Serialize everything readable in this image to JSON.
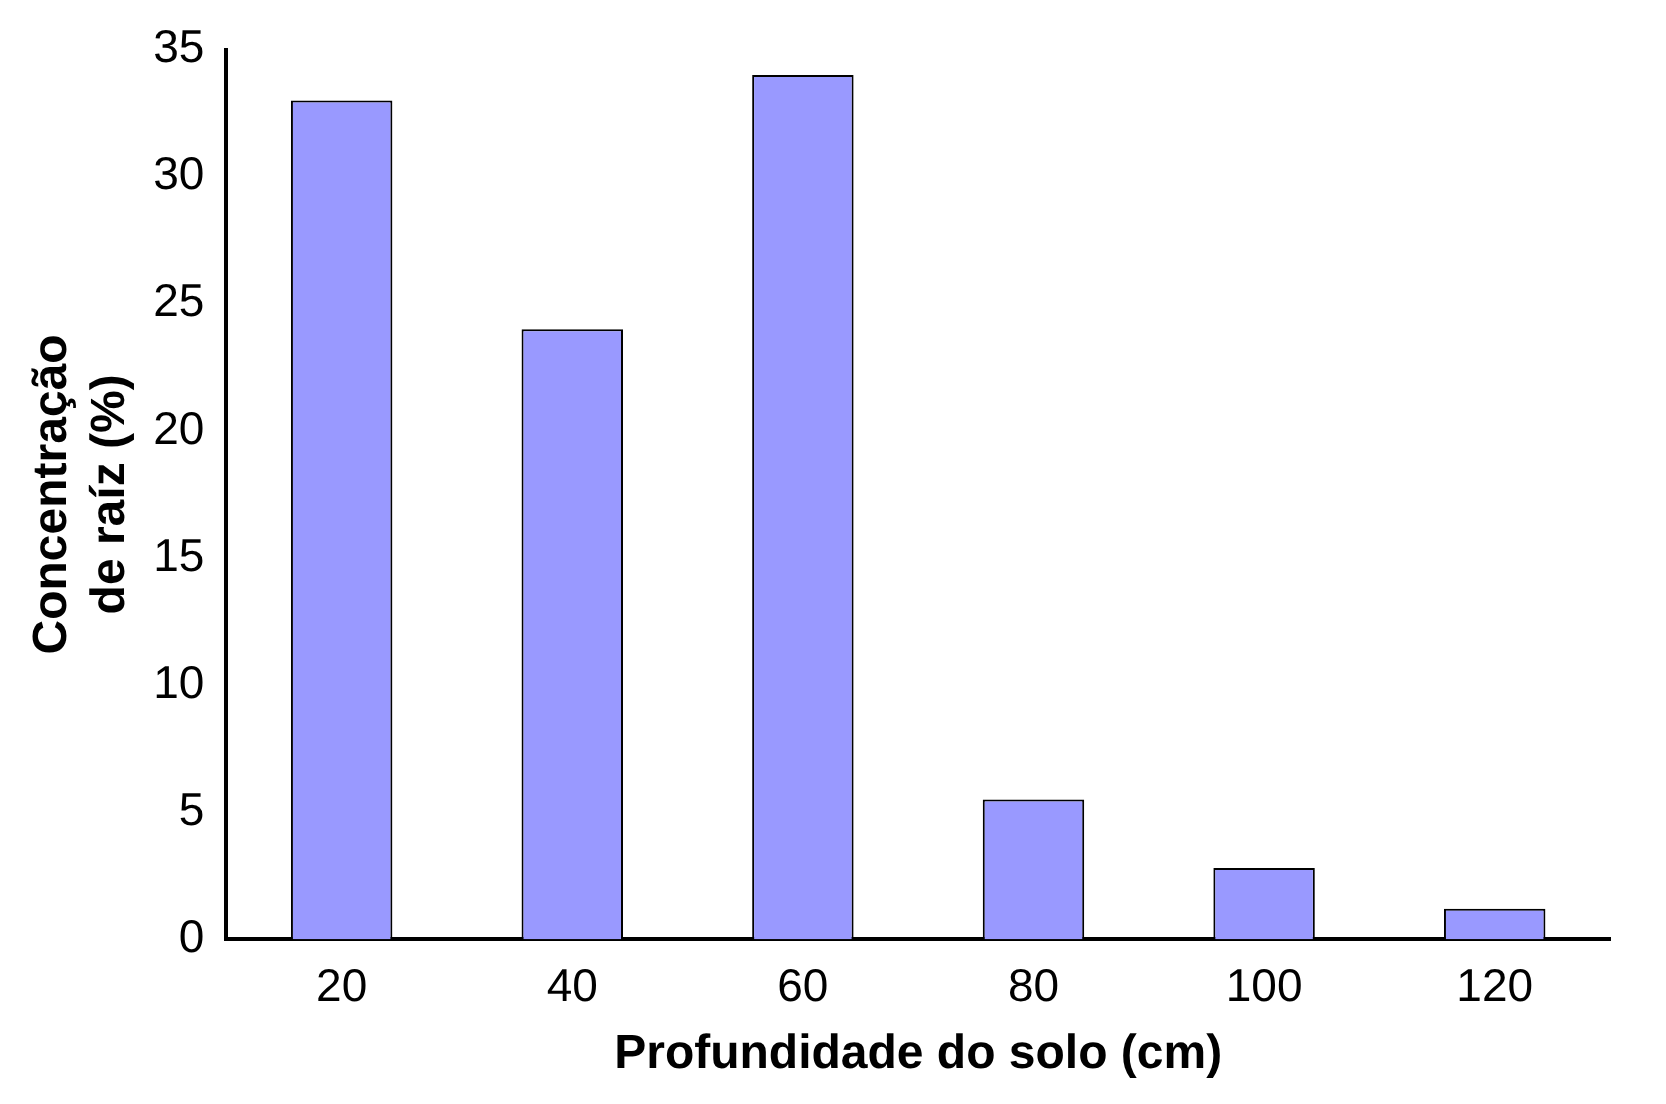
{
  "chart_data": {
    "type": "bar",
    "xlabel": "Profundidade do solo (cm)",
    "ylabel": "Concentração de raíz (%)",
    "categories": [
      "20",
      "40",
      "60",
      "80",
      "100",
      "120"
    ],
    "values": [
      33,
      24,
      34,
      5.5,
      2.8,
      1.2
    ],
    "color": "#9999ff",
    "ylim": [
      0,
      35
    ],
    "yticks": [
      0,
      5,
      10,
      15,
      20,
      25,
      30,
      35
    ],
    "grid": false,
    "legend": false
  }
}
